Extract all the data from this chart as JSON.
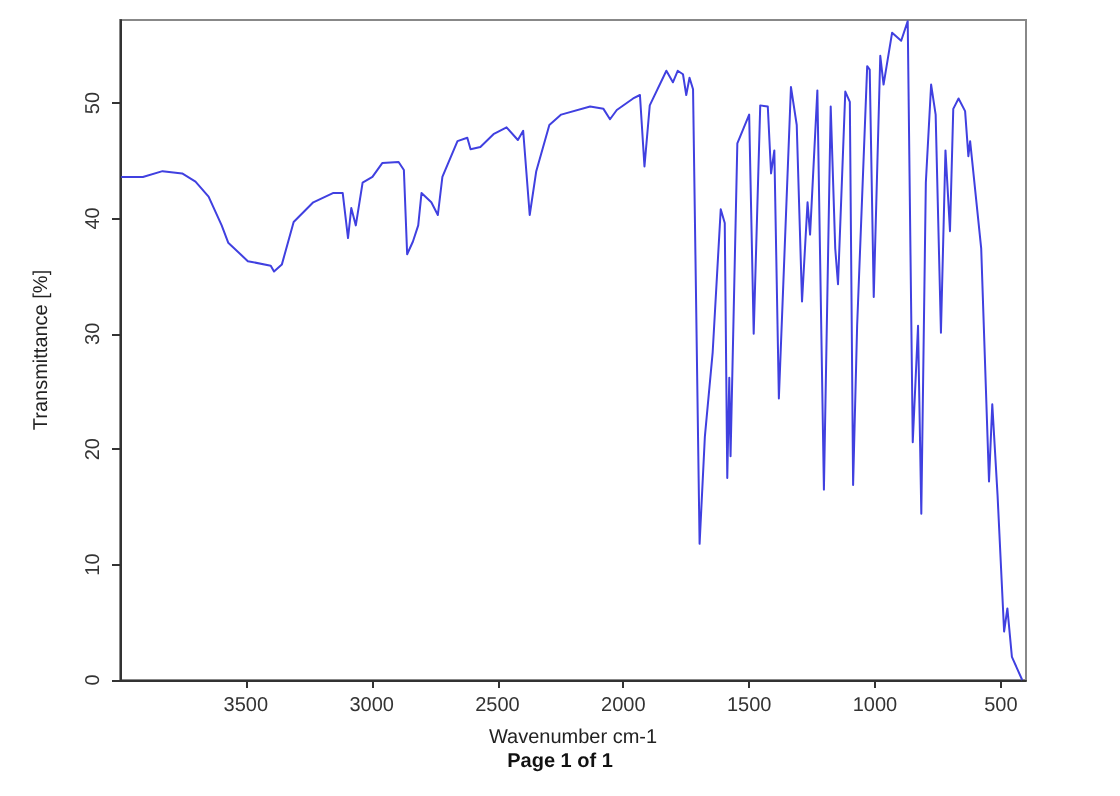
{
  "chart_data": {
    "type": "line",
    "xlabel": "Wavenumber cm-1",
    "ylabel": "Transmittance [%]",
    "annotations": [
      "Page 1 of 1"
    ],
    "xlim": [
      4000,
      400
    ],
    "xticks": [
      500,
      1000,
      1500,
      2000,
      2500,
      3000,
      3500
    ],
    "ylim": [
      0,
      57.2
    ],
    "yticks": [
      0,
      10,
      20,
      30,
      40,
      50
    ],
    "grid": false,
    "marker": "none",
    "line_style": "solid",
    "series": [
      {
        "color": "#4040e0",
        "x": [
          3995,
          3909,
          3831,
          3753,
          3700,
          3648,
          3596,
          3570,
          3492,
          3401,
          3388,
          3357,
          3310,
          3232,
          3154,
          3115,
          3094,
          3081,
          3063,
          3036,
          2997,
          2958,
          2893,
          2872,
          2859,
          2836,
          2815,
          2802,
          2763,
          2737,
          2719,
          2659,
          2620,
          2607,
          2568,
          2516,
          2464,
          2419,
          2398,
          2372,
          2346,
          2294,
          2247,
          2132,
          2079,
          2053,
          2026,
          1961,
          1934,
          1916,
          1895,
          1829,
          1803,
          1784,
          1763,
          1750,
          1737,
          1723,
          1697,
          1676,
          1645,
          1613,
          1597,
          1587,
          1579,
          1574,
          1547,
          1500,
          1482,
          1456,
          1426,
          1413,
          1400,
          1382,
          1334,
          1311,
          1290,
          1268,
          1258,
          1229,
          1203,
          1176,
          1158,
          1147,
          1118,
          1100,
          1087,
          1071,
          1031,
          1021,
          1005,
          979,
          966,
          932,
          896,
          870,
          850,
          829,
          816,
          798,
          777,
          759,
          738,
          720,
          702,
          689,
          668,
          642,
          629,
          622,
          578,
          547,
          534,
          513,
          487,
          474,
          456,
          415
        ],
        "values": [
          43.6,
          43.6,
          44.1,
          43.9,
          43.2,
          41.9,
          39.4,
          37.9,
          36.3,
          35.9,
          35.4,
          36.0,
          39.7,
          41.4,
          42.2,
          42.2,
          38.3,
          40.9,
          39.4,
          43.1,
          43.6,
          44.8,
          44.9,
          44.2,
          36.9,
          38.0,
          39.4,
          42.2,
          41.4,
          40.3,
          43.6,
          46.7,
          47.0,
          46.0,
          46.2,
          47.3,
          47.9,
          46.8,
          47.6,
          40.3,
          44.1,
          48.1,
          49.0,
          49.7,
          49.5,
          48.6,
          49.4,
          50.4,
          50.7,
          44.5,
          49.8,
          52.8,
          51.8,
          52.8,
          52.5,
          50.7,
          52.2,
          51.2,
          11.8,
          21.1,
          28.4,
          40.8,
          39.6,
          17.5,
          26.2,
          19.4,
          46.5,
          49.0,
          30.0,
          49.8,
          49.7,
          43.9,
          45.9,
          24.4,
          51.4,
          48.1,
          32.8,
          41.4,
          38.6,
          51.1,
          16.5,
          49.7,
          37.4,
          34.3,
          51.0,
          50.1,
          16.9,
          30.7,
          53.2,
          52.9,
          33.2,
          54.1,
          51.6,
          56.1,
          55.4,
          57.1,
          20.6,
          30.7,
          14.4,
          43.1,
          51.6,
          49.0,
          30.1,
          45.9,
          38.9,
          49.5,
          50.4,
          49.3,
          45.4,
          46.7,
          37.4,
          17.2,
          23.9,
          16.0,
          4.2,
          6.2,
          2.0,
          0
        ]
      }
    ]
  }
}
